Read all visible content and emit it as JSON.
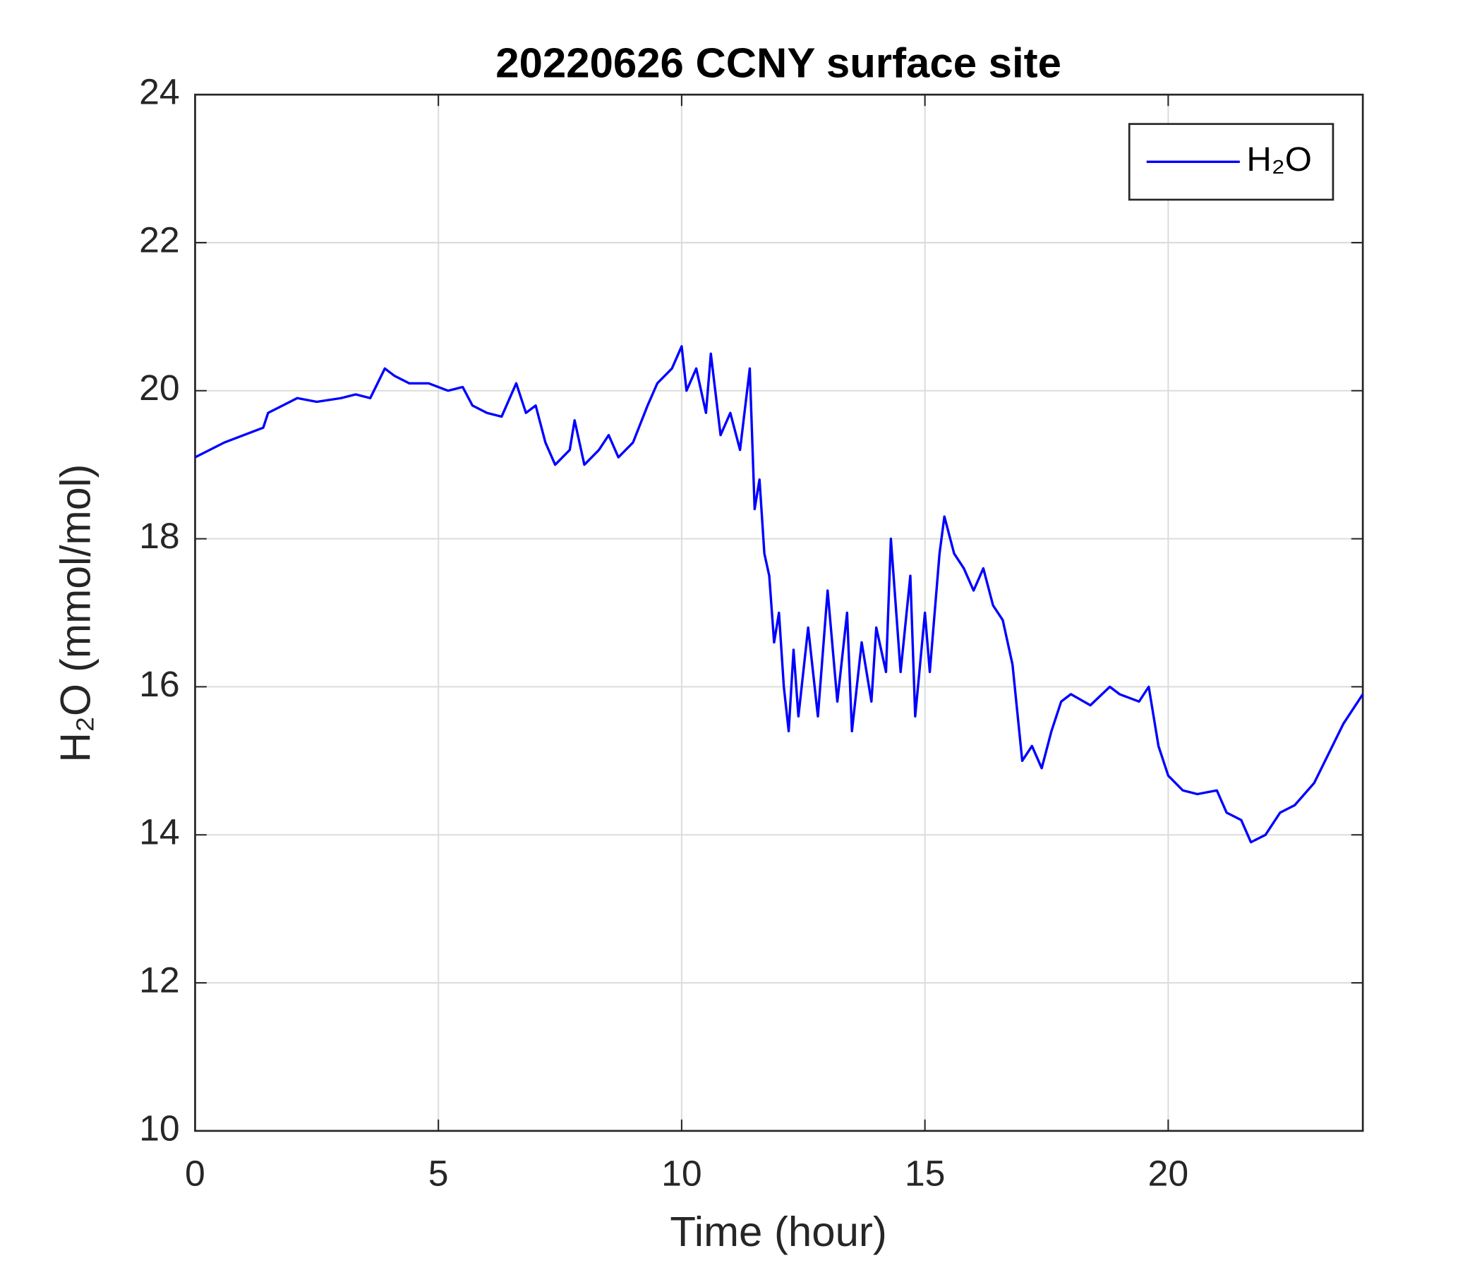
{
  "chart_data": {
    "type": "line",
    "title": "20220626 CCNY surface site",
    "x_label": "Time (hour)",
    "y_label": "H₂O (mmol/mol)",
    "x": [
      0,
      0.3,
      0.6,
      1.0,
      1.4,
      1.5,
      1.8,
      2.1,
      2.5,
      3,
      3.3,
      3.6,
      3.9,
      4.1,
      4.4,
      4.8,
      5.2,
      5.5,
      5.7,
      6.0,
      6.3,
      6.6,
      6.8,
      7.0,
      7.2,
      7.4,
      7.7,
      7.8,
      8.0,
      8.3,
      8.5,
      8.7,
      9.0,
      9.3,
      9.5,
      9.8,
      10.0,
      10.1,
      10.3,
      10.5,
      10.6,
      10.8,
      11.0,
      11.2,
      11.4,
      11.5,
      11.6,
      11.7,
      11.8,
      11.9,
      12.0,
      12.1,
      12.2,
      12.3,
      12.4,
      12.6,
      12.8,
      13.0,
      13.2,
      13.4,
      13.5,
      13.7,
      13.9,
      14.0,
      14.2,
      14.3,
      14.5,
      14.7,
      14.8,
      15.0,
      15.1,
      15.3,
      15.4,
      15.6,
      15.8,
      16.0,
      16.2,
      16.4,
      16.6,
      16.8,
      17.0,
      17.2,
      17.4,
      17.6,
      17.8,
      18.0,
      18.4,
      18.8,
      19.0,
      19.4,
      19.6,
      19.8,
      20.0,
      20.3,
      20.6,
      21.0,
      21.2,
      21.5,
      21.7,
      22.0,
      22.3,
      22.6,
      23.0,
      23.3,
      23.6,
      24.0
    ],
    "series": [
      {
        "name": "H₂O",
        "color": "#0000ff",
        "values": [
          19.1,
          19.2,
          19.3,
          19.4,
          19.5,
          19.7,
          19.8,
          19.9,
          19.85,
          19.9,
          19.95,
          19.9,
          20.3,
          20.2,
          20.1,
          20.1,
          20.0,
          20.05,
          19.8,
          19.7,
          19.65,
          20.1,
          19.7,
          19.8,
          19.3,
          19.0,
          19.2,
          19.6,
          19.0,
          19.2,
          19.4,
          19.1,
          19.3,
          19.8,
          20.1,
          20.3,
          20.6,
          20.0,
          20.3,
          19.7,
          20.5,
          19.4,
          19.7,
          19.2,
          20.3,
          18.4,
          18.8,
          17.8,
          17.5,
          16.6,
          17.0,
          16.0,
          15.4,
          16.5,
          15.6,
          16.8,
          15.6,
          17.3,
          15.8,
          17.0,
          15.4,
          16.6,
          15.8,
          16.8,
          16.2,
          18.0,
          16.2,
          17.5,
          15.6,
          17.0,
          16.2,
          17.8,
          18.3,
          17.8,
          17.6,
          17.3,
          17.6,
          17.1,
          16.9,
          16.3,
          15.0,
          15.2,
          14.9,
          15.4,
          15.8,
          15.9,
          15.75,
          16.0,
          15.9,
          15.8,
          16.0,
          15.2,
          14.8,
          14.6,
          14.55,
          14.6,
          14.3,
          14.2,
          13.9,
          14.0,
          14.3,
          14.4,
          14.7,
          15.1,
          15.5,
          15.9
        ]
      }
    ],
    "xlim": [
      0,
      24
    ],
    "xticks": [
      0,
      5,
      10,
      15,
      20
    ],
    "ylim": [
      10,
      24
    ],
    "yticks": [
      10,
      12,
      14,
      16,
      18,
      20,
      22,
      24
    ],
    "grid": true,
    "legend_position": "upper-right"
  }
}
